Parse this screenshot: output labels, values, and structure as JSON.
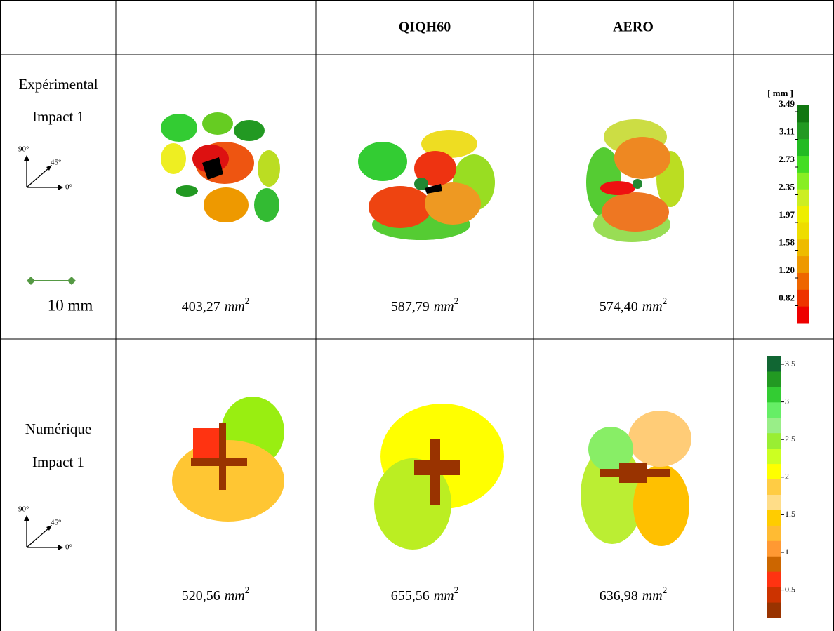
{
  "columns": [
    "QIQH60",
    "AERO"
  ],
  "rows": [
    {
      "label": [
        "Expérimental",
        "Impact 1"
      ],
      "areas": [
        "403,27",
        "587,79",
        "574,40"
      ]
    },
    {
      "label": [
        "Numérique",
        "Impact 1"
      ],
      "areas": [
        "520,56",
        "655,56",
        "636,98"
      ]
    }
  ],
  "orientation": {
    "deg90": "90°",
    "deg45": "45°",
    "deg0": "0°"
  },
  "scale_bar": "10 mm",
  "area_unit": "mm",
  "area_exponent": "2",
  "legend_experimental": {
    "unit": "[ mm ]",
    "ticks": [
      "3.49",
      "3.11",
      "2.73",
      "2.35",
      "1.97",
      "1.58",
      "1.20",
      "0.82"
    ]
  },
  "legend_numerical": {
    "ticks": [
      "3.5",
      "3",
      "2.5",
      "2",
      "1.5",
      "1",
      "0.5"
    ]
  }
}
